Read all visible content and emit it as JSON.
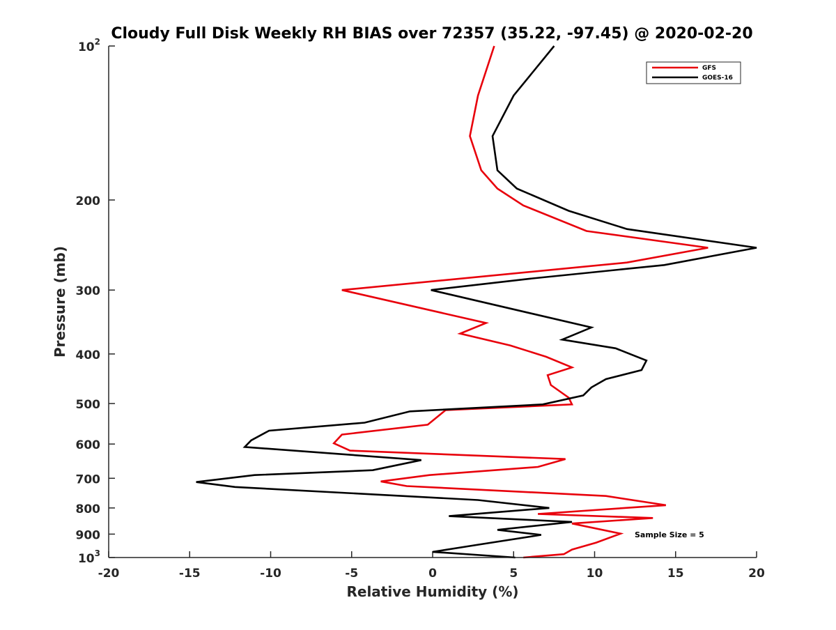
{
  "chart_data": {
    "type": "line",
    "title": "Cloudy Full Disk Weekly RH BIAS over 72357 (35.22, -97.45) @ 2020-02-20",
    "xlabel": "Relative Humidity (%)",
    "ylabel": "Pressure (mb)",
    "xlim": [
      -20,
      20
    ],
    "ylim": [
      1000,
      100
    ],
    "y_scale": "log",
    "y_reversed": true,
    "grid": false,
    "legend_position": "top-right",
    "x_ticks": [
      "-20",
      "-15",
      "-10",
      "-5",
      "0",
      "5",
      "10",
      "15",
      "20"
    ],
    "y_tick_values": [
      100,
      200,
      300,
      400,
      500,
      600,
      700,
      800,
      900,
      1000
    ],
    "y_tick_labels": [
      {
        "base": "10",
        "exp": "2"
      },
      {
        "base": "200"
      },
      {
        "base": "300"
      },
      {
        "base": "400"
      },
      {
        "base": "500"
      },
      {
        "base": "600"
      },
      {
        "base": "700"
      },
      {
        "base": "800"
      },
      {
        "base": "900"
      },
      {
        "base": "10",
        "exp": "3"
      }
    ],
    "annotation": "Sample Size = 5",
    "series": [
      {
        "name": "GFS",
        "color": "#e8000b",
        "points": [
          [
            3.8,
            100
          ],
          [
            2.8,
            125
          ],
          [
            2.3,
            150
          ],
          [
            3.0,
            175
          ],
          [
            4.0,
            190
          ],
          [
            5.6,
            205
          ],
          [
            9.5,
            230
          ],
          [
            17.0,
            248
          ],
          [
            12.0,
            265
          ],
          [
            -5.6,
            300
          ],
          [
            3.3,
            348
          ],
          [
            1.7,
            365
          ],
          [
            4.8,
            385
          ],
          [
            7.0,
            405
          ],
          [
            8.6,
            425
          ],
          [
            7.1,
            440
          ],
          [
            7.3,
            460
          ],
          [
            8.4,
            487
          ],
          [
            8.6,
            502
          ],
          [
            0.8,
            515
          ],
          [
            -0.3,
            550
          ],
          [
            -5.6,
            575
          ],
          [
            -6.1,
            598
          ],
          [
            -5.1,
            618
          ],
          [
            8.2,
            642
          ],
          [
            6.5,
            665
          ],
          [
            -0.2,
            690
          ],
          [
            -3.2,
            710
          ],
          [
            -1.6,
            725
          ],
          [
            10.7,
            758
          ],
          [
            14.4,
            790
          ],
          [
            6.5,
            822
          ],
          [
            13.6,
            837
          ],
          [
            8.6,
            858
          ],
          [
            11.6,
            898
          ],
          [
            10.1,
            935
          ],
          [
            8.6,
            965
          ],
          [
            8.1,
            985
          ],
          [
            5.6,
            1000
          ]
        ]
      },
      {
        "name": "GOES-16",
        "color": "#000000",
        "points": [
          [
            7.5,
            100
          ],
          [
            5.0,
            125
          ],
          [
            3.7,
            150
          ],
          [
            4.0,
            175
          ],
          [
            5.2,
            190
          ],
          [
            8.4,
            210
          ],
          [
            12.0,
            228
          ],
          [
            20.0,
            248
          ],
          [
            14.3,
            268
          ],
          [
            6.0,
            285
          ],
          [
            -0.1,
            300
          ],
          [
            9.8,
            355
          ],
          [
            8.0,
            375
          ],
          [
            11.3,
            390
          ],
          [
            13.2,
            412
          ],
          [
            12.9,
            430
          ],
          [
            10.7,
            448
          ],
          [
            9.8,
            465
          ],
          [
            9.3,
            482
          ],
          [
            6.8,
            502
          ],
          [
            -1.4,
            518
          ],
          [
            -4.2,
            545
          ],
          [
            -10.1,
            565
          ],
          [
            -11.2,
            590
          ],
          [
            -11.6,
            608
          ],
          [
            -0.7,
            645
          ],
          [
            -3.7,
            675
          ],
          [
            -11.0,
            690
          ],
          [
            -14.6,
            712
          ],
          [
            -12.2,
            728
          ],
          [
            2.8,
            772
          ],
          [
            7.2,
            800
          ],
          [
            1.0,
            830
          ],
          [
            8.6,
            852
          ],
          [
            4.0,
            883
          ],
          [
            6.7,
            903
          ],
          [
            2.7,
            945
          ],
          [
            0.0,
            975
          ],
          [
            5.1,
            1000
          ]
        ]
      }
    ]
  }
}
